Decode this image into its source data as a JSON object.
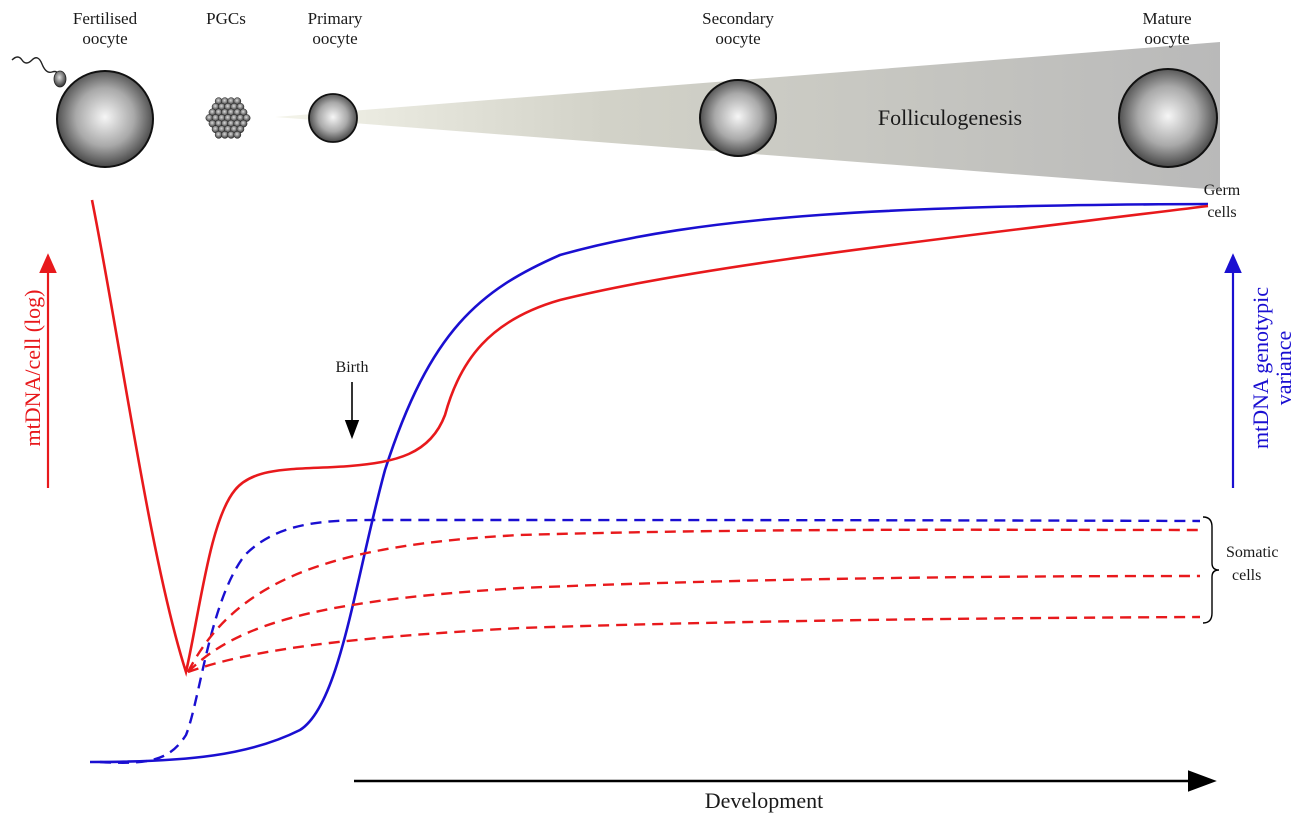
{
  "stages": [
    {
      "id": "fertilised",
      "line1": "Fertilised",
      "line2": "oocyte"
    },
    {
      "id": "pgcs",
      "line1": "PGCs",
      "line2": ""
    },
    {
      "id": "primary",
      "line1": "Primary",
      "line2": "oocyte"
    },
    {
      "id": "secondary",
      "line1": "Secondary",
      "line2": "oocyte"
    },
    {
      "id": "mature",
      "line1": "Mature",
      "line2": "oocyte"
    }
  ],
  "process_label": "Folliculogenesis",
  "birth_label": "Birth",
  "germ_label": {
    "line1": "Germ",
    "line2": "cells"
  },
  "somatic_label": {
    "line1": "Somatic",
    "line2": "cells"
  },
  "left_axis_label": "mtDNA/cell (log)",
  "right_axis_label": {
    "line1": "mtDNA genotypic",
    "line2": "variance"
  },
  "x_axis_label": "Development",
  "colors": {
    "mtdna_copy_number": "#e8191c",
    "genotypic_variance": "#1a0fd1",
    "axis": "#000000"
  },
  "icons": [
    "sperm-icon",
    "oocyte-icon",
    "pgc-cluster-icon",
    "folliculogenesis-wedge"
  ]
}
